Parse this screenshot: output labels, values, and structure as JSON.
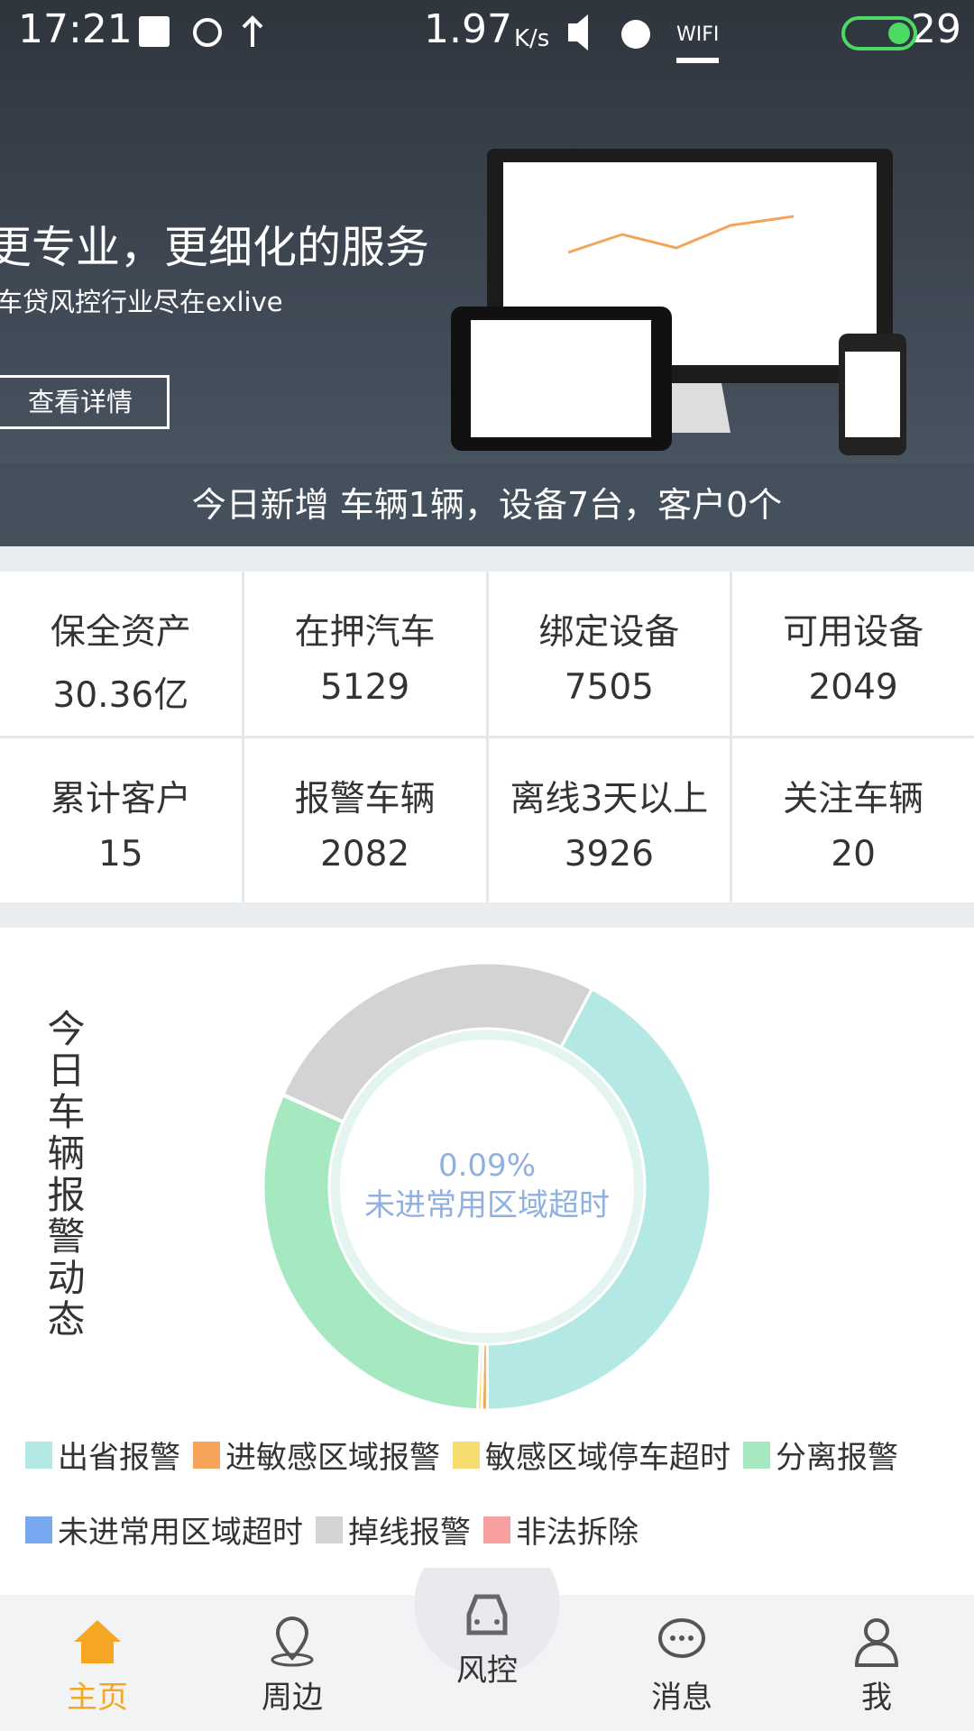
{
  "status_bar": {
    "time": "17:21",
    "speed": "1.97",
    "speed_unit": "K/s",
    "wifi": "WIFI",
    "battery": "29"
  },
  "banner": {
    "headline": "更专业，更细化的服务",
    "subline": "车贷风控行业尽在exlive",
    "button": "查看详情",
    "today": "今日新增 车辆1辆，设备7台，客户0个"
  },
  "stats": [
    {
      "label": "保全资产",
      "value": "30.36亿"
    },
    {
      "label": "在押汽车",
      "value": "5129"
    },
    {
      "label": "绑定设备",
      "value": "7505"
    },
    {
      "label": "可用设备",
      "value": "2049"
    },
    {
      "label": "累计客户",
      "value": "15"
    },
    {
      "label": "报警车辆",
      "value": "2082"
    },
    {
      "label": "离线3天以上",
      "value": "3926"
    },
    {
      "label": "关注车辆",
      "value": "20"
    }
  ],
  "chart_data": {
    "type": "pie",
    "donut": true,
    "title": "今日车辆报警动态",
    "categories": [
      "出省报警",
      "进敏感区域报警",
      "敏感区域停车超时",
      "分离报警",
      "未进常用区域超时",
      "掉线报警",
      "非法拆除"
    ],
    "values": [
      42.2,
      0.4,
      0.3,
      31,
      0.09,
      26,
      0.01
    ],
    "value_labels": [
      null,
      null,
      null,
      null,
      "0.09%",
      null,
      null
    ],
    "colors": [
      "#b3e8e5",
      "#f5a55a",
      "#f7dc6f",
      "#a6e9c0",
      "#78a8f0",
      "#d3d3d3",
      "#f8a0a0"
    ]
  },
  "tabs": [
    {
      "label": "主页",
      "active": true
    },
    {
      "label": "周边",
      "active": false
    },
    {
      "label": "风控",
      "active": false
    },
    {
      "label": "消息",
      "active": false
    },
    {
      "label": "我",
      "active": false
    }
  ]
}
